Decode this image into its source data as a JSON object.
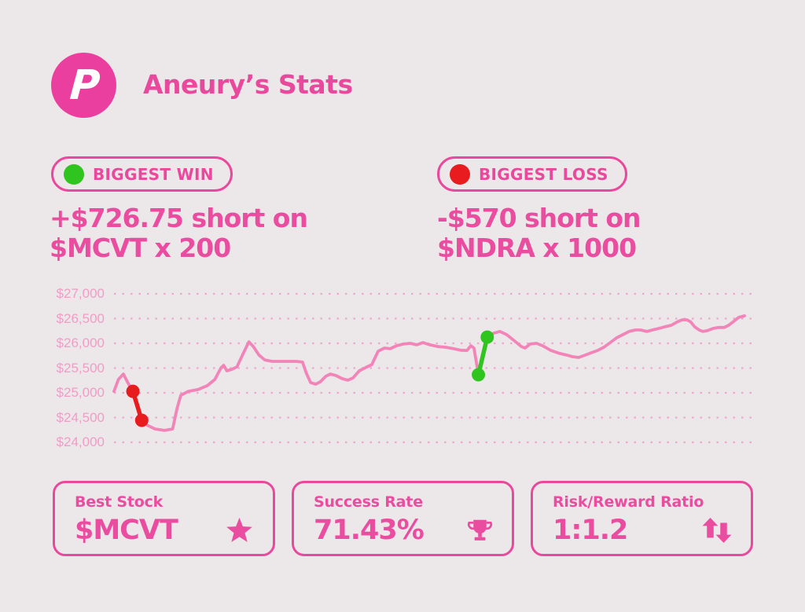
{
  "page": {
    "bg_color": "#ece8eb",
    "accent_color": "#e8499c",
    "headline_color": "#ea4da0"
  },
  "header": {
    "logo_letter": "P",
    "logo_color": "#ea3f9e",
    "title": "Aneury’s Stats"
  },
  "win": {
    "badge_label": "BIGGEST WIN",
    "dot_color": "#30c41f",
    "line1": "+$726.75 short on",
    "line2": "$MCVT x 200"
  },
  "loss": {
    "badge_label": "BIGGEST LOSS",
    "dot_color": "#e81b1e",
    "line1": "-$570 short on",
    "line2": "$NDRA x 1000"
  },
  "chart_data": {
    "type": "line",
    "title": "",
    "xlabel": "",
    "ylabel": "",
    "ylim": [
      24000,
      27000
    ],
    "yticks": [
      "$27,000",
      "$26,500",
      "$26,000",
      "$25,500",
      "$25,000",
      "$24,500",
      "$24,000"
    ],
    "ytick_values": [
      27000,
      26500,
      26000,
      25500,
      25000,
      24500,
      24000
    ],
    "grid": "dotted-horizontal",
    "grid_color": "#f0a6cd",
    "tick_label_color": "#f19cc6",
    "line_color": "#f284b8",
    "legend": "none",
    "x_unit": "percent-of-width",
    "points": [
      [
        0,
        25030
      ],
      [
        0.7,
        25270
      ],
      [
        1.5,
        25380
      ],
      [
        2.2,
        25205
      ],
      [
        3.0,
        25030
      ],
      [
        3.6,
        24745
      ],
      [
        4.4,
        24445
      ],
      [
        5.2,
        24350
      ],
      [
        6.5,
        24270
      ],
      [
        8.0,
        24240
      ],
      [
        9.3,
        24270
      ],
      [
        10.0,
        24685
      ],
      [
        10.6,
        24950
      ],
      [
        11.8,
        25030
      ],
      [
        13.3,
        25065
      ],
      [
        14.8,
        25145
      ],
      [
        16.0,
        25270
      ],
      [
        17.0,
        25510
      ],
      [
        17.4,
        25555
      ],
      [
        17.9,
        25445
      ],
      [
        18.7,
        25475
      ],
      [
        19.5,
        25525
      ],
      [
        20.5,
        25795
      ],
      [
        21.4,
        26030
      ],
      [
        22.1,
        25935
      ],
      [
        23.0,
        25760
      ],
      [
        23.9,
        25665
      ],
      [
        25.1,
        25635
      ],
      [
        28.9,
        25635
      ],
      [
        29.9,
        25620
      ],
      [
        30.5,
        25400
      ],
      [
        31.2,
        25205
      ],
      [
        32.0,
        25175
      ],
      [
        32.7,
        25220
      ],
      [
        33.6,
        25335
      ],
      [
        34.3,
        25380
      ],
      [
        35.2,
        25350
      ],
      [
        36.2,
        25285
      ],
      [
        37.1,
        25255
      ],
      [
        37.9,
        25300
      ],
      [
        38.9,
        25445
      ],
      [
        39.9,
        25510
      ],
      [
        40.9,
        25570
      ],
      [
        41.9,
        25840
      ],
      [
        42.9,
        25905
      ],
      [
        43.8,
        25890
      ],
      [
        44.8,
        25950
      ],
      [
        45.9,
        25985
      ],
      [
        47.0,
        26000
      ],
      [
        48.0,
        25970
      ],
      [
        49.0,
        26015
      ],
      [
        50.1,
        25970
      ],
      [
        51.4,
        25935
      ],
      [
        52.6,
        25920
      ],
      [
        53.9,
        25890
      ],
      [
        55.0,
        25860
      ],
      [
        56.0,
        25855
      ],
      [
        56.6,
        25950
      ],
      [
        57.1,
        25905
      ],
      [
        57.8,
        25365
      ],
      [
        59.2,
        26125
      ],
      [
        60.2,
        26205
      ],
      [
        61.2,
        26240
      ],
      [
        62.3,
        26175
      ],
      [
        63.5,
        26050
      ],
      [
        64.6,
        25935
      ],
      [
        65.2,
        25905
      ],
      [
        66.0,
        25985
      ],
      [
        67.0,
        26000
      ],
      [
        68.0,
        25950
      ],
      [
        69.3,
        25855
      ],
      [
        70.7,
        25795
      ],
      [
        71.9,
        25760
      ],
      [
        72.7,
        25730
      ],
      [
        73.7,
        25715
      ],
      [
        74.7,
        25760
      ],
      [
        75.7,
        25810
      ],
      [
        76.7,
        25855
      ],
      [
        77.7,
        25920
      ],
      [
        78.7,
        26015
      ],
      [
        79.7,
        26110
      ],
      [
        80.7,
        26175
      ],
      [
        81.7,
        26240
      ],
      [
        82.7,
        26270
      ],
      [
        83.5,
        26270
      ],
      [
        84.5,
        26240
      ],
      [
        85.4,
        26270
      ],
      [
        86.4,
        26300
      ],
      [
        87.4,
        26335
      ],
      [
        88.4,
        26365
      ],
      [
        89.3,
        26430
      ],
      [
        90.1,
        26475
      ],
      [
        90.9,
        26475
      ],
      [
        91.5,
        26430
      ],
      [
        92.1,
        26335
      ],
      [
        92.8,
        26270
      ],
      [
        93.4,
        26240
      ],
      [
        94.1,
        26255
      ],
      [
        95.0,
        26300
      ],
      [
        95.9,
        26320
      ],
      [
        96.8,
        26320
      ],
      [
        97.5,
        26365
      ],
      [
        98.3,
        26445
      ],
      [
        99.1,
        26525
      ],
      [
        100,
        26555
      ]
    ],
    "loss_segment": {
      "label": "biggest loss",
      "color": "#e81b1e",
      "points": [
        [
          3.0,
          25030
        ],
        [
          4.4,
          24445
        ]
      ]
    },
    "win_segment": {
      "label": "biggest win",
      "color": "#30c41f",
      "points": [
        [
          57.8,
          25365
        ],
        [
          59.2,
          26125
        ]
      ]
    }
  },
  "cards": [
    {
      "label": "Best Stock",
      "value": "$MCVT",
      "icon": "star-icon"
    },
    {
      "label": "Success Rate",
      "value": "71.43%",
      "icon": "trophy-icon"
    },
    {
      "label": "Risk/Reward Ratio",
      "value": "1:1.2",
      "icon": "up-down-arrows-icon"
    }
  ]
}
